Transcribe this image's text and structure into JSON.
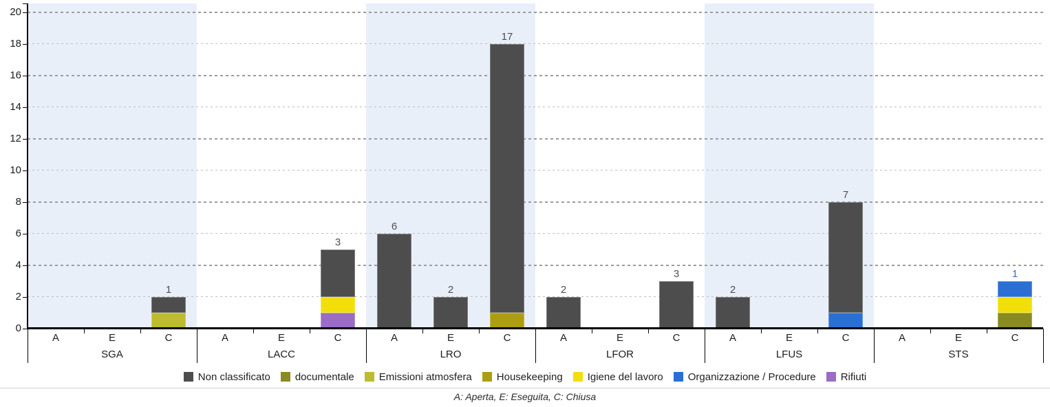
{
  "chart": {
    "footnote": "A: Aperta, E: Eseguita, C: Chiusa"
  },
  "chart_data": {
    "type": "bar",
    "variant": "grouped-stacked-column",
    "title": "",
    "xlabel": "",
    "ylabel": "",
    "ylim": [
      0,
      20
    ],
    "yticks": [
      0,
      2,
      4,
      6,
      8,
      10,
      12,
      14,
      16,
      18,
      20
    ],
    "grid": "horizontal-dashed",
    "legend_position": "bottom",
    "band_color": "#e9eff9",
    "banded_groups": [
      "SGA",
      "LRO",
      "LFUS"
    ],
    "groups": [
      "SGA",
      "LACC",
      "LRO",
      "LFOR",
      "LFUS",
      "STS"
    ],
    "categories": [
      "A",
      "E",
      "C"
    ],
    "series": [
      {
        "name": "Non classificato",
        "color": "#4d4d4d",
        "label_color": "#4a4e57"
      },
      {
        "name": "documentale",
        "color": "#8a8a22",
        "label_color": "#8a8a22"
      },
      {
        "name": "Emissioni atmosfera",
        "color": "#bcbc2e",
        "label_color": "#b4b424"
      },
      {
        "name": "Housekeeping",
        "color": "#ad9d10",
        "label_color": "#a6960d"
      },
      {
        "name": "Igiene del lavoro",
        "color": "#f2df0a",
        "label_color": "#e8d407"
      },
      {
        "name": "Organizzazione / Procedure",
        "color": "#2b6fd4",
        "label_color": "#2b6fd4"
      },
      {
        "name": "Rifiuti",
        "color": "#9a6cc6",
        "label_color": "#9a6cc6"
      }
    ],
    "bars": [
      {
        "group": "SGA",
        "category": "C",
        "total": 2,
        "segments": [
          {
            "series": "Emissioni atmosfera",
            "value": 1
          },
          {
            "series": "Non classificato",
            "value": 1
          }
        ]
      },
      {
        "group": "LACC",
        "category": "C",
        "total": 5,
        "segments": [
          {
            "series": "Rifiuti",
            "value": 1
          },
          {
            "series": "Igiene del lavoro",
            "value": 1
          },
          {
            "series": "Non classificato",
            "value": 3
          }
        ]
      },
      {
        "group": "LRO",
        "category": "A",
        "total": 6,
        "segments": [
          {
            "series": "Non classificato",
            "value": 6
          }
        ]
      },
      {
        "group": "LRO",
        "category": "E",
        "total": 2,
        "segments": [
          {
            "series": "Non classificato",
            "value": 2
          }
        ]
      },
      {
        "group": "LRO",
        "category": "C",
        "total": 18,
        "segments": [
          {
            "series": "Housekeeping",
            "value": 1
          },
          {
            "series": "Non classificato",
            "value": 17
          }
        ]
      },
      {
        "group": "LFOR",
        "category": "A",
        "total": 2,
        "segments": [
          {
            "series": "Non classificato",
            "value": 2
          }
        ]
      },
      {
        "group": "LFOR",
        "category": "C",
        "total": 3,
        "segments": [
          {
            "series": "Non classificato",
            "value": 3
          }
        ]
      },
      {
        "group": "LFUS",
        "category": "A",
        "total": 2,
        "segments": [
          {
            "series": "Non classificato",
            "value": 2
          }
        ]
      },
      {
        "group": "LFUS",
        "category": "C",
        "total": 8,
        "segments": [
          {
            "series": "Organizzazione / Procedure",
            "value": 1
          },
          {
            "series": "Non classificato",
            "value": 7
          }
        ]
      },
      {
        "group": "STS",
        "category": "C",
        "total": 3,
        "segments": [
          {
            "series": "documentale",
            "value": 1
          },
          {
            "series": "Igiene del lavoro",
            "value": 1
          },
          {
            "series": "Organizzazione / Procedure",
            "value": 1
          }
        ]
      }
    ]
  }
}
